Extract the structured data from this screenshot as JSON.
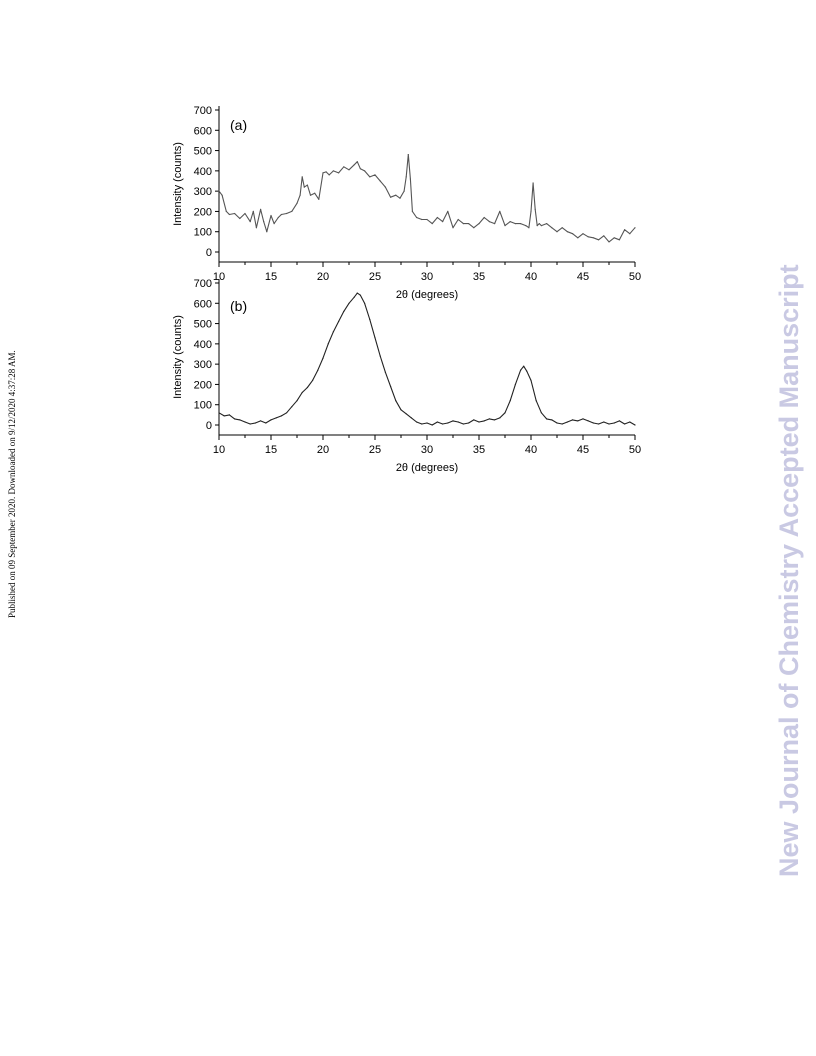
{
  "page": {
    "side_note": "Published on 09 September 2020. Downloaded on 9/12/2020 4:37:28 AM.",
    "watermark": "New Journal of Chemistry Accepted Manuscript"
  },
  "chart_data": [
    {
      "type": "line",
      "panel_label": "(a)",
      "xlabel": "2θ (degrees)",
      "ylabel": "Intensity (counts)",
      "xlim": [
        10,
        50
      ],
      "ylim": [
        -50,
        700
      ],
      "xticks": [
        10,
        15,
        20,
        25,
        30,
        35,
        40,
        45,
        50
      ],
      "yticks": [
        0,
        100,
        200,
        300,
        400,
        500,
        600,
        700
      ],
      "grid": false,
      "series": [
        {
          "color": "#555555",
          "x": [
            10,
            10.3,
            10.7,
            11,
            11.5,
            12,
            12.5,
            13,
            13.3,
            13.6,
            14,
            14.3,
            14.6,
            15,
            15.3,
            15.7,
            16,
            16.5,
            17,
            17.5,
            17.8,
            18,
            18.2,
            18.5,
            18.8,
            19.2,
            19.6,
            20,
            20.3,
            20.6,
            21,
            21.5,
            22,
            22.5,
            23,
            23.3,
            23.6,
            24,
            24.5,
            25,
            25.5,
            26,
            26.5,
            27,
            27.4,
            27.8,
            28,
            28.2,
            28.4,
            28.6,
            29,
            29.5,
            30,
            30.5,
            31,
            31.5,
            32,
            32.5,
            33,
            33.5,
            34,
            34.5,
            35,
            35.5,
            36,
            36.5,
            37,
            37.5,
            38,
            38.5,
            39,
            39.5,
            39.8,
            40,
            40.2,
            40.4,
            40.6,
            40.8,
            41,
            41.5,
            42,
            42.5,
            43,
            43.5,
            44,
            44.5,
            45,
            45.5,
            46,
            46.5,
            47,
            47.5,
            48,
            48.5,
            49,
            49.5,
            50
          ],
          "y": [
            300,
            280,
            200,
            185,
            190,
            165,
            190,
            150,
            200,
            120,
            210,
            150,
            100,
            180,
            140,
            170,
            185,
            190,
            200,
            240,
            280,
            370,
            320,
            330,
            280,
            290,
            260,
            390,
            395,
            380,
            400,
            390,
            420,
            405,
            430,
            445,
            410,
            400,
            370,
            380,
            350,
            320,
            270,
            280,
            265,
            300,
            370,
            480,
            360,
            200,
            170,
            160,
            160,
            140,
            170,
            150,
            200,
            120,
            160,
            140,
            140,
            120,
            140,
            170,
            150,
            140,
            200,
            130,
            150,
            140,
            140,
            130,
            120,
            200,
            340,
            210,
            130,
            140,
            130,
            140,
            120,
            100,
            120,
            100,
            90,
            70,
            90,
            75,
            70,
            60,
            80,
            50,
            70,
            60,
            110,
            90,
            120
          ]
        }
      ]
    },
    {
      "type": "line",
      "panel_label": "(b)",
      "xlabel": "2θ (degrees)",
      "ylabel": "Intensity (counts)",
      "xlim": [
        10,
        50
      ],
      "ylim": [
        -50,
        700
      ],
      "xticks": [
        10,
        15,
        20,
        25,
        30,
        35,
        40,
        45,
        50
      ],
      "yticks": [
        0,
        100,
        200,
        300,
        400,
        500,
        600,
        700
      ],
      "grid": false,
      "series": [
        {
          "color": "#222222",
          "x": [
            10,
            10.5,
            11,
            11.5,
            12,
            12.5,
            13,
            13.5,
            14,
            14.5,
            15,
            15.5,
            16,
            16.5,
            17,
            17.5,
            18,
            18.5,
            19,
            19.5,
            20,
            20.5,
            21,
            21.5,
            22,
            22.5,
            23,
            23.3,
            23.6,
            24,
            24.5,
            25,
            25.5,
            26,
            26.5,
            27,
            27.5,
            28,
            28.5,
            29,
            29.5,
            30,
            30.5,
            31,
            31.5,
            32,
            32.5,
            33,
            33.5,
            34,
            34.5,
            35,
            35.5,
            36,
            36.5,
            37,
            37.5,
            38,
            38.5,
            39,
            39.3,
            39.6,
            40,
            40.5,
            41,
            41.5,
            42,
            42.5,
            43,
            43.5,
            44,
            44.5,
            45,
            45.5,
            46,
            46.5,
            47,
            47.5,
            48,
            48.5,
            49,
            49.5,
            50
          ],
          "y": [
            60,
            45,
            50,
            30,
            25,
            15,
            5,
            10,
            20,
            10,
            25,
            35,
            45,
            60,
            90,
            120,
            160,
            185,
            220,
            270,
            330,
            400,
            460,
            510,
            560,
            600,
            630,
            650,
            640,
            600,
            520,
            430,
            340,
            260,
            190,
            120,
            75,
            55,
            35,
            15,
            5,
            10,
            0,
            15,
            5,
            10,
            20,
            15,
            5,
            10,
            25,
            15,
            20,
            30,
            25,
            35,
            60,
            120,
            200,
            270,
            290,
            265,
            220,
            120,
            60,
            30,
            25,
            10,
            5,
            15,
            25,
            20,
            30,
            20,
            10,
            5,
            15,
            5,
            10,
            20,
            5,
            15,
            0
          ]
        }
      ]
    }
  ]
}
